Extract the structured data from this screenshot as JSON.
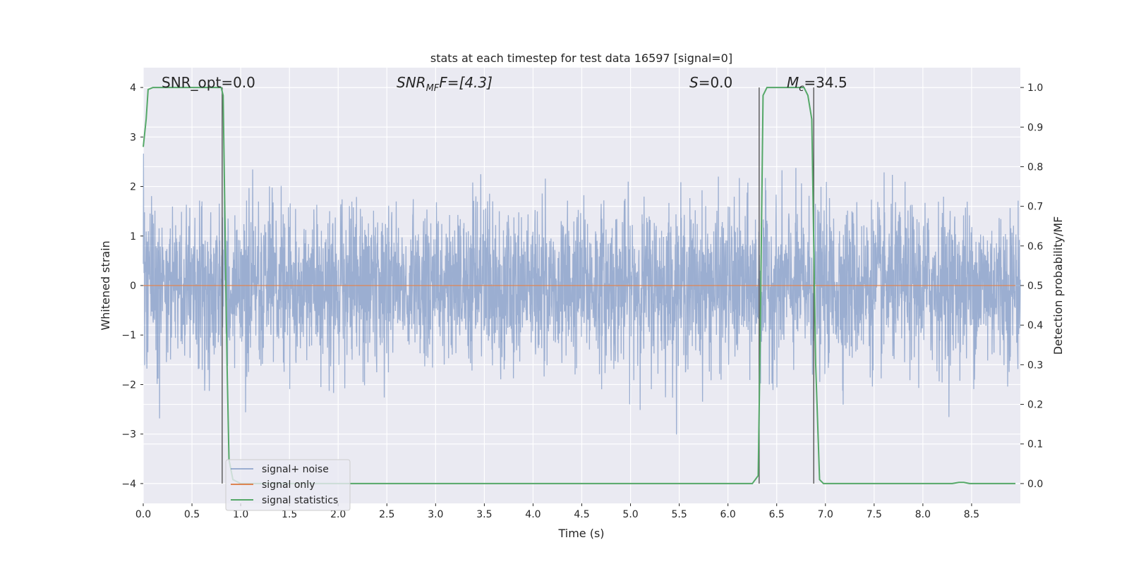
{
  "chart_data": {
    "type": "line",
    "title": "stats at each timestep for test data 16597 [signal=0]",
    "xlabel": "Time (s)",
    "ylabel": "Whitened strain",
    "ylabel_right": "Detection probability/MF",
    "xlim": [
      0.0,
      9.0
    ],
    "ylim": [
      -4.4,
      4.4
    ],
    "ylim_right": [
      -0.05,
      1.05
    ],
    "grid": true,
    "x_ticks": [
      "0.0",
      "0.5",
      "1.0",
      "1.5",
      "2.0",
      "2.5",
      "3.0",
      "3.5",
      "4.0",
      "4.5",
      "5.0",
      "5.5",
      "6.0",
      "6.5",
      "7.0",
      "7.5",
      "8.0",
      "8.5"
    ],
    "y_ticks": [
      "4",
      "3",
      "2",
      "1",
      "0",
      "−1",
      "−2",
      "−3",
      "−4"
    ],
    "y_right_ticks": [
      "1.0",
      "0.9",
      "0.8",
      "0.7",
      "0.6",
      "0.5",
      "0.4",
      "0.3",
      "0.2",
      "0.1",
      "0.0"
    ],
    "annotations": [
      {
        "id": "snr-opt",
        "text": "SNR_opt=0.0"
      },
      {
        "id": "snr-mf-pre",
        "text": "SNR",
        "sub": "MF",
        "post": "F=[4.3]"
      },
      {
        "id": "s-value",
        "pre": "S",
        "text": "=0.0"
      },
      {
        "id": "mc-value",
        "pre": "M",
        "sub": "c",
        "text": "=34.5"
      }
    ],
    "vertical_markers": [
      0.81,
      6.32,
      6.88
    ],
    "series": [
      {
        "name": "signal+ noise",
        "color": "#4c72b0",
        "style": "noise",
        "sigma": 0.8,
        "x_range": [
          0.0,
          9.0
        ]
      },
      {
        "name": "signal only",
        "color": "#dd8452",
        "values_constant": 0.0
      },
      {
        "name": "signal statistics",
        "color": "#55a868",
        "axis": "right",
        "points": [
          [
            0.0,
            0.85
          ],
          [
            0.03,
            0.92
          ],
          [
            0.05,
            0.995
          ],
          [
            0.1,
            1.0
          ],
          [
            0.8,
            1.0
          ],
          [
            0.82,
            0.98
          ],
          [
            0.86,
            0.3
          ],
          [
            0.88,
            0.06
          ],
          [
            0.92,
            0.01
          ],
          [
            1.0,
            0.0
          ],
          [
            6.25,
            0.0
          ],
          [
            6.31,
            0.02
          ],
          [
            6.33,
            0.35
          ],
          [
            6.36,
            0.98
          ],
          [
            6.4,
            1.0
          ],
          [
            6.78,
            1.0
          ],
          [
            6.82,
            0.98
          ],
          [
            6.86,
            0.92
          ],
          [
            6.9,
            0.3
          ],
          [
            6.94,
            0.01
          ],
          [
            6.98,
            0.0
          ],
          [
            8.3,
            0.0
          ],
          [
            8.37,
            0.003
          ],
          [
            8.42,
            0.003
          ],
          [
            8.48,
            0.0
          ],
          [
            8.95,
            0.0
          ]
        ]
      }
    ],
    "legend": {
      "placement": "lower-left",
      "entries": [
        "signal+ noise",
        "signal only",
        "signal statistics"
      ]
    }
  },
  "colors": {
    "plot_bg": "#eaeaf2",
    "grid": "#ffffff",
    "text": "#262626",
    "marker": "#555555"
  }
}
